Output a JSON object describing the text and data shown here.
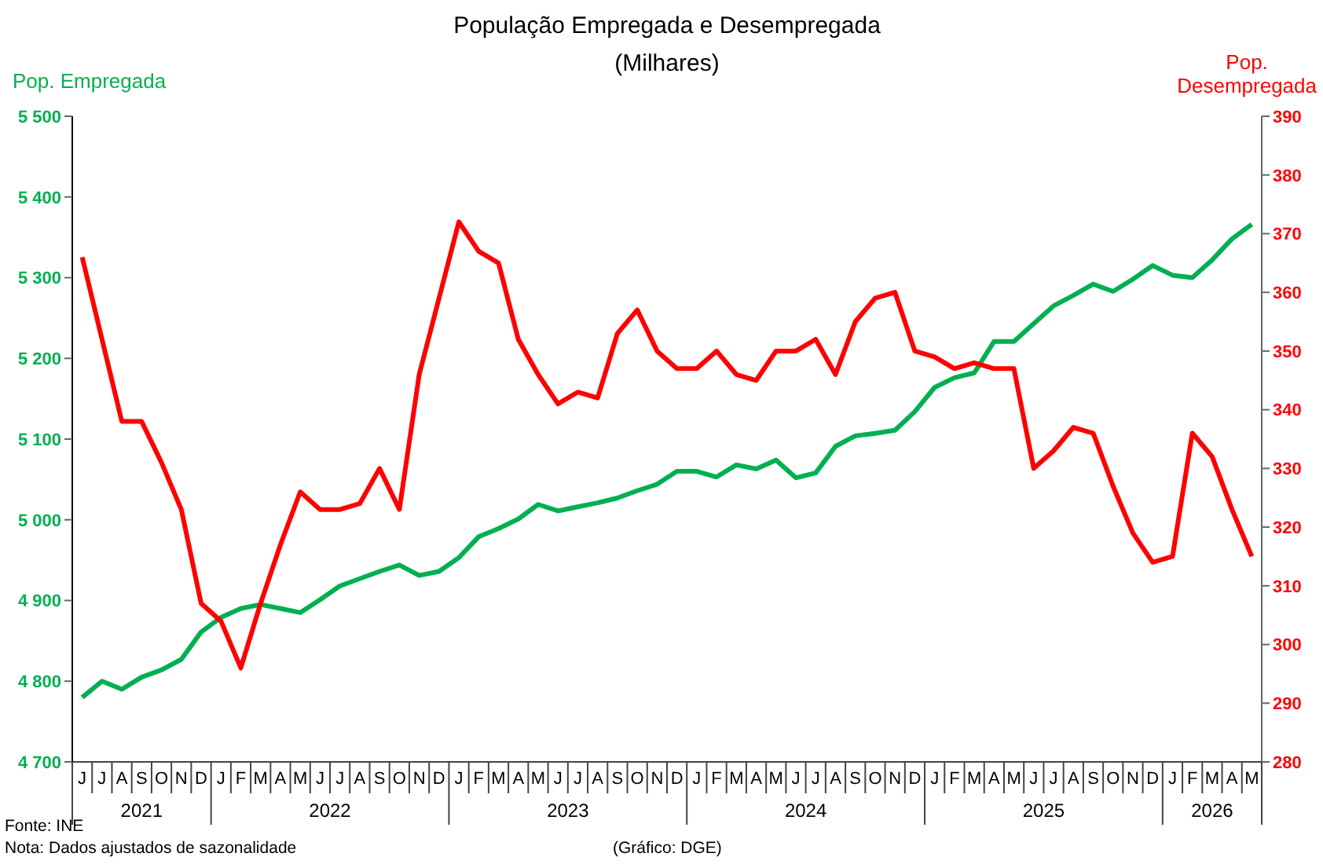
{
  "chart_data": {
    "type": "line",
    "title": "População Empregada e Desempregada",
    "subtitle": "(Milhares)",
    "ylabel": "Pop. Empregada",
    "y2label": "Pop. Desempregada",
    "categories": [
      "J",
      "J",
      "A",
      "S",
      "O",
      "N",
      "D",
      "J",
      "F",
      "M",
      "A",
      "M",
      "J",
      "J",
      "A",
      "S",
      "O",
      "N",
      "D",
      "J",
      "F",
      "M",
      "A",
      "M",
      "J",
      "J",
      "A",
      "S",
      "O",
      "N",
      "D",
      "J",
      "F",
      "M",
      "A",
      "M",
      "J",
      "J",
      "A",
      "S",
      "O",
      "N",
      "D",
      "J",
      "F",
      "M",
      "A",
      "M",
      "J",
      "J",
      "A",
      "S",
      "O",
      "N",
      "D",
      "J",
      "F",
      "M",
      "A",
      "M"
    ],
    "series": [
      {
        "color": "#00b050",
        "values": [
          4780,
          4800,
          4790,
          4805,
          4814,
          4827,
          4861,
          4879,
          4890,
          4895,
          4890,
          4885,
          4901,
          4918,
          4927,
          4936,
          4944,
          4931,
          4936,
          4953,
          4979,
          4989,
          5001,
          5019,
          5011,
          5016,
          5021,
          5027,
          5036,
          5044,
          5060,
          5060,
          5053,
          5068,
          5063,
          5074,
          5052,
          5058,
          5091,
          5104,
          5107,
          5111,
          5134,
          5164,
          5176,
          5182,
          5221,
          5221,
          5243,
          5265,
          5278,
          5292,
          5283,
          5298,
          5315,
          5303,
          5300,
          5322,
          5348,
          5366
        ]
      },
      {
        "color": "#ff0000",
        "axis": "y2",
        "values": [
          366,
          352,
          338,
          338,
          331,
          323,
          307,
          304,
          296,
          307,
          317,
          326,
          323,
          323,
          324,
          330,
          323,
          346,
          359,
          372,
          367,
          365,
          352,
          346,
          341,
          343,
          342,
          353,
          357,
          350,
          347,
          347,
          350,
          346,
          345,
          350,
          350,
          352,
          346,
          355,
          359,
          360,
          350,
          349,
          347,
          348,
          347,
          347,
          330,
          333,
          337,
          336,
          327,
          319,
          314,
          315,
          336,
          332,
          323,
          315
        ]
      }
    ],
    "ylim": [
      4700,
      5500
    ],
    "yticks": [
      {
        "value": 4700,
        "label": "4 700"
      },
      {
        "value": 4800,
        "label": "4 800"
      },
      {
        "value": 4900,
        "label": "4 900"
      },
      {
        "value": 5000,
        "label": "5 000"
      },
      {
        "value": 5100,
        "label": "5 100"
      },
      {
        "value": 5200,
        "label": "5 200"
      },
      {
        "value": 5300,
        "label": "5 300"
      },
      {
        "value": 5400,
        "label": "5 400"
      },
      {
        "value": 5500,
        "label": "5 500"
      }
    ],
    "y2lim": [
      280,
      390
    ],
    "y2ticks": [
      280,
      290,
      300,
      310,
      320,
      330,
      340,
      350,
      360,
      370,
      380,
      390
    ],
    "grid": false,
    "legend": false,
    "marker": "none",
    "line_style": "solid",
    "annotations": [
      "2021",
      "2022",
      "2023",
      "2024",
      "2025",
      "2026",
      "Fonte: INE",
      "Nota: Dados ajustados de sazonalidade",
      "(Gráfico: DGE)"
    ]
  }
}
